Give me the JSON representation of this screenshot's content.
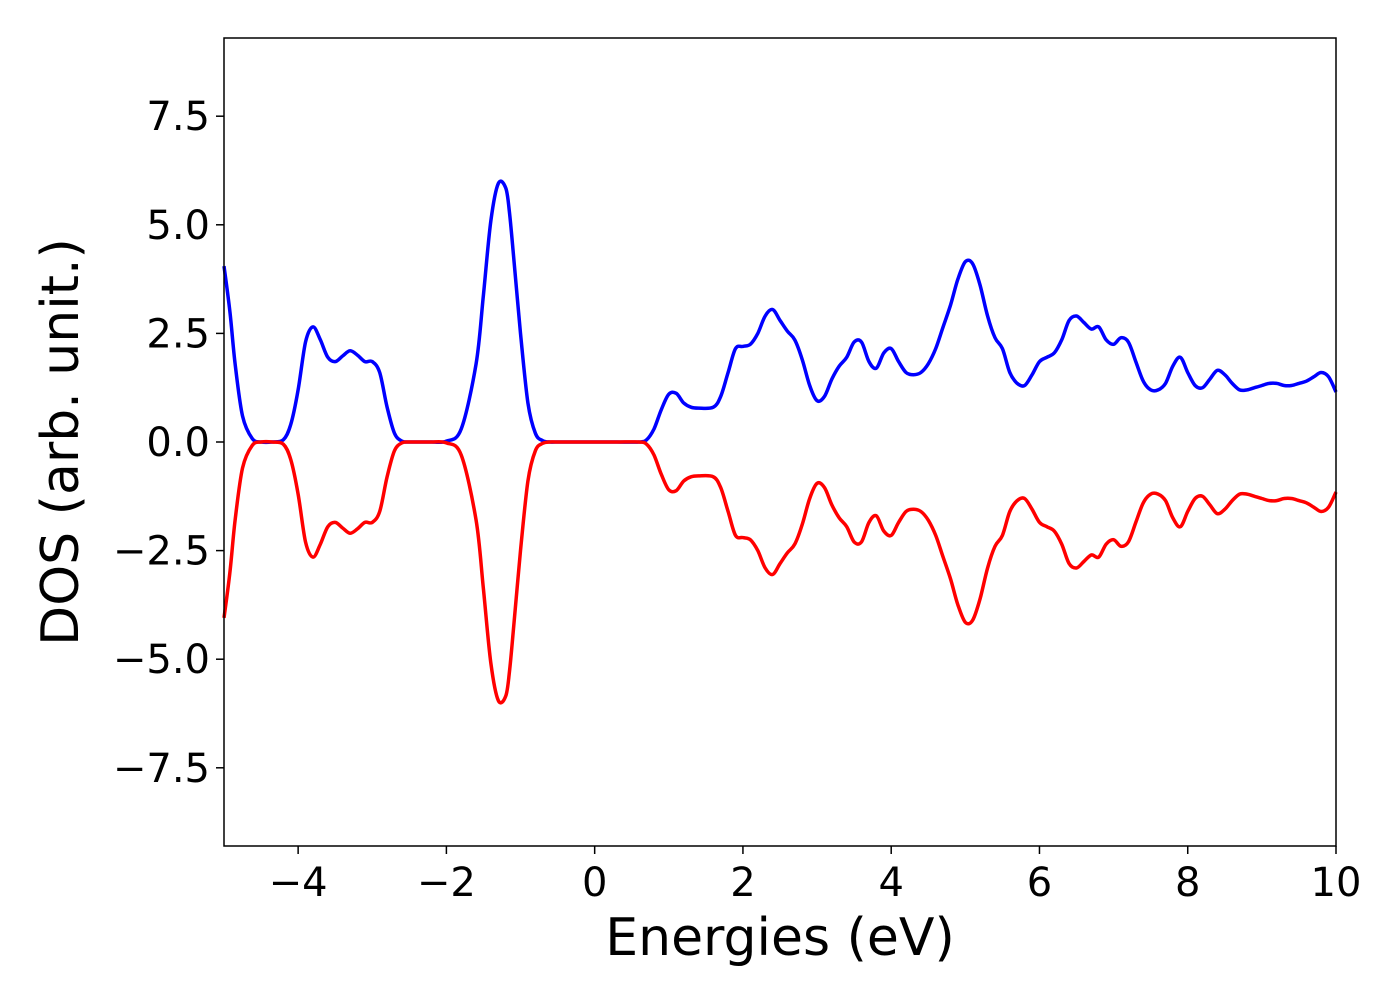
{
  "chart_data": {
    "type": "line",
    "title": "",
    "xlabel": "Energies (eV)",
    "ylabel": "DOS (arb. unit.)",
    "xlim": [
      -5,
      10
    ],
    "ylim": [
      -9.3,
      9.3
    ],
    "grid": false,
    "legend": "none",
    "x_ticks": [
      -4,
      -2,
      0,
      2,
      4,
      6,
      8,
      10
    ],
    "x_tick_labels": [
      "−4",
      "−2",
      "0",
      "2",
      "4",
      "6",
      "8",
      "10"
    ],
    "y_ticks": [
      7.5,
      5.0,
      2.5,
      0.0,
      -2.5,
      -5.0,
      -7.5
    ],
    "y_tick_labels": [
      "7.5",
      "5.0",
      "2.5",
      "0.0",
      "−2.5",
      "−5.0",
      "−7.5"
    ],
    "series": [
      {
        "color": "#0000ff",
        "x": [
          -5.0,
          -4.92,
          -4.85,
          -4.75,
          -4.62,
          -4.5,
          -4.35,
          -4.2,
          -4.1,
          -4.0,
          -3.9,
          -3.8,
          -3.7,
          -3.6,
          -3.5,
          -3.4,
          -3.3,
          -3.2,
          -3.1,
          -3.0,
          -2.9,
          -2.8,
          -2.7,
          -2.6,
          -2.5,
          -2.4,
          -2.3,
          -2.2,
          -2.0,
          -1.8,
          -1.6,
          -1.5,
          -1.4,
          -1.3,
          -1.2,
          -1.15,
          -1.1,
          -1.0,
          -0.9,
          -0.8,
          -0.7,
          -0.6,
          -0.5,
          -0.4,
          -0.2,
          0.0,
          0.3,
          0.6,
          0.7,
          0.8,
          0.9,
          1.0,
          1.1,
          1.2,
          1.3,
          1.4,
          1.6,
          1.7,
          1.8,
          1.9,
          2.0,
          2.1,
          2.2,
          2.3,
          2.4,
          2.5,
          2.6,
          2.7,
          2.8,
          2.9,
          3.0,
          3.1,
          3.2,
          3.3,
          3.4,
          3.5,
          3.6,
          3.7,
          3.8,
          3.9,
          4.0,
          4.1,
          4.2,
          4.3,
          4.4,
          4.5,
          4.6,
          4.7,
          4.8,
          4.9,
          5.0,
          5.1,
          5.2,
          5.3,
          5.4,
          5.5,
          5.6,
          5.7,
          5.8,
          5.9,
          6.0,
          6.1,
          6.2,
          6.3,
          6.4,
          6.5,
          6.6,
          6.7,
          6.8,
          6.9,
          7.0,
          7.1,
          7.2,
          7.3,
          7.4,
          7.5,
          7.6,
          7.7,
          7.8,
          7.9,
          8.0,
          8.1,
          8.2,
          8.3,
          8.4,
          8.5,
          8.6,
          8.7,
          8.8,
          8.9,
          9.0,
          9.1,
          9.2,
          9.3,
          9.4,
          9.5,
          9.6,
          9.7,
          9.8,
          9.9,
          10.0
        ],
        "y": [
          4.05,
          3.0,
          1.8,
          0.6,
          0.08,
          0.0,
          0.0,
          0.05,
          0.4,
          1.2,
          2.3,
          2.65,
          2.35,
          1.95,
          1.85,
          1.98,
          2.1,
          2.0,
          1.85,
          1.85,
          1.6,
          0.8,
          0.2,
          0.02,
          0.0,
          0.0,
          0.0,
          0.0,
          0.02,
          0.3,
          1.8,
          3.4,
          5.1,
          5.95,
          5.85,
          5.3,
          4.4,
          2.5,
          0.9,
          0.2,
          0.03,
          0.0,
          0.0,
          0.0,
          0.0,
          0.0,
          0.0,
          0.0,
          0.05,
          0.3,
          0.75,
          1.1,
          1.12,
          0.9,
          0.8,
          0.78,
          0.8,
          1.05,
          1.6,
          2.15,
          2.2,
          2.25,
          2.5,
          2.9,
          3.05,
          2.8,
          2.55,
          2.35,
          1.9,
          1.3,
          0.95,
          1.05,
          1.45,
          1.75,
          1.95,
          2.3,
          2.3,
          1.85,
          1.7,
          2.05,
          2.15,
          1.85,
          1.6,
          1.55,
          1.6,
          1.8,
          2.15,
          2.65,
          3.15,
          3.75,
          4.15,
          4.1,
          3.6,
          2.9,
          2.4,
          2.15,
          1.6,
          1.35,
          1.3,
          1.55,
          1.85,
          1.95,
          2.05,
          2.35,
          2.8,
          2.9,
          2.75,
          2.6,
          2.65,
          2.35,
          2.25,
          2.4,
          2.3,
          1.85,
          1.4,
          1.2,
          1.2,
          1.35,
          1.75,
          1.95,
          1.6,
          1.3,
          1.25,
          1.45,
          1.65,
          1.55,
          1.35,
          1.2,
          1.2,
          1.25,
          1.3,
          1.35,
          1.35,
          1.3,
          1.3,
          1.35,
          1.4,
          1.5,
          1.6,
          1.5,
          1.15
        ]
      },
      {
        "color": "#ff0000",
        "x": [
          -5.0,
          -4.92,
          -4.85,
          -4.75,
          -4.62,
          -4.5,
          -4.35,
          -4.2,
          -4.1,
          -4.0,
          -3.9,
          -3.8,
          -3.7,
          -3.6,
          -3.5,
          -3.4,
          -3.3,
          -3.2,
          -3.1,
          -3.0,
          -2.9,
          -2.8,
          -2.7,
          -2.6,
          -2.5,
          -2.4,
          -2.3,
          -2.2,
          -2.0,
          -1.8,
          -1.6,
          -1.5,
          -1.4,
          -1.3,
          -1.2,
          -1.15,
          -1.1,
          -1.0,
          -0.9,
          -0.8,
          -0.7,
          -0.6,
          -0.5,
          -0.4,
          -0.2,
          0.0,
          0.3,
          0.6,
          0.7,
          0.8,
          0.9,
          1.0,
          1.1,
          1.2,
          1.3,
          1.4,
          1.6,
          1.7,
          1.8,
          1.9,
          2.0,
          2.1,
          2.2,
          2.3,
          2.4,
          2.5,
          2.6,
          2.7,
          2.8,
          2.9,
          3.0,
          3.1,
          3.2,
          3.3,
          3.4,
          3.5,
          3.6,
          3.7,
          3.8,
          3.9,
          4.0,
          4.1,
          4.2,
          4.3,
          4.4,
          4.5,
          4.6,
          4.7,
          4.8,
          4.9,
          5.0,
          5.1,
          5.2,
          5.3,
          5.4,
          5.5,
          5.6,
          5.7,
          5.8,
          5.9,
          6.0,
          6.1,
          6.2,
          6.3,
          6.4,
          6.5,
          6.6,
          6.7,
          6.8,
          6.9,
          7.0,
          7.1,
          7.2,
          7.3,
          7.4,
          7.5,
          7.6,
          7.7,
          7.8,
          7.9,
          8.0,
          8.1,
          8.2,
          8.3,
          8.4,
          8.5,
          8.6,
          8.7,
          8.8,
          8.9,
          9.0,
          9.1,
          9.2,
          9.3,
          9.4,
          9.5,
          9.6,
          9.7,
          9.8,
          9.9,
          10.0
        ],
        "y": [
          -4.05,
          -3.0,
          -1.8,
          -0.6,
          -0.08,
          0.0,
          0.0,
          -0.05,
          -0.4,
          -1.2,
          -2.3,
          -2.65,
          -2.35,
          -1.95,
          -1.85,
          -1.98,
          -2.1,
          -2.0,
          -1.85,
          -1.85,
          -1.6,
          -0.8,
          -0.2,
          -0.02,
          0.0,
          0.0,
          0.0,
          0.0,
          -0.02,
          -0.3,
          -1.8,
          -3.4,
          -5.1,
          -5.95,
          -5.85,
          -5.3,
          -4.4,
          -2.5,
          -0.9,
          -0.2,
          -0.03,
          0.0,
          0.0,
          0.0,
          0.0,
          0.0,
          0.0,
          0.0,
          -0.05,
          -0.3,
          -0.75,
          -1.1,
          -1.12,
          -0.9,
          -0.8,
          -0.78,
          -0.8,
          -1.05,
          -1.6,
          -2.15,
          -2.2,
          -2.25,
          -2.5,
          -2.9,
          -3.05,
          -2.8,
          -2.55,
          -2.35,
          -1.9,
          -1.3,
          -0.95,
          -1.05,
          -1.45,
          -1.75,
          -1.95,
          -2.3,
          -2.3,
          -1.85,
          -1.7,
          -2.05,
          -2.15,
          -1.85,
          -1.6,
          -1.55,
          -1.6,
          -1.8,
          -2.15,
          -2.65,
          -3.15,
          -3.75,
          -4.15,
          -4.1,
          -3.6,
          -2.9,
          -2.4,
          -2.15,
          -1.6,
          -1.35,
          -1.3,
          -1.55,
          -1.85,
          -1.95,
          -2.05,
          -2.35,
          -2.8,
          -2.9,
          -2.75,
          -2.6,
          -2.65,
          -2.35,
          -2.25,
          -2.4,
          -2.3,
          -1.85,
          -1.4,
          -1.2,
          -1.2,
          -1.35,
          -1.75,
          -1.95,
          -1.6,
          -1.3,
          -1.25,
          -1.45,
          -1.65,
          -1.55,
          -1.35,
          -1.2,
          -1.2,
          -1.25,
          -1.3,
          -1.35,
          -1.35,
          -1.3,
          -1.3,
          -1.35,
          -1.4,
          -1.5,
          -1.6,
          -1.5,
          -1.15
        ]
      }
    ]
  }
}
